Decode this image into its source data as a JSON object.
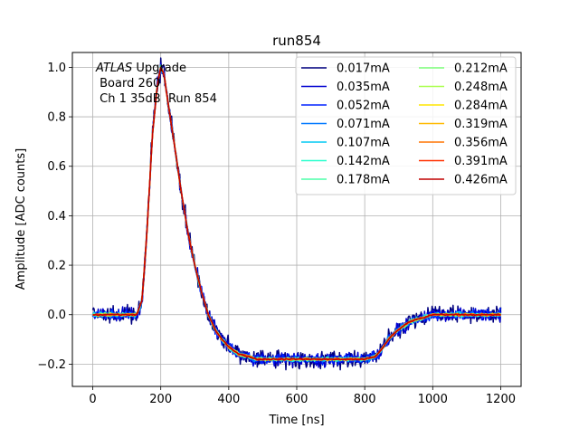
{
  "chart_data": {
    "type": "line",
    "title": "run854",
    "xlabel": "Time [ns]",
    "ylabel": "Amplitude [ADC counts]",
    "xlim": [
      -60,
      1260
    ],
    "ylim": [
      -0.29,
      1.06
    ],
    "xticks": [
      0,
      200,
      400,
      600,
      800,
      1000,
      1200
    ],
    "yticks": [
      -0.2,
      0.0,
      0.2,
      0.4,
      0.6,
      0.8,
      1.0
    ],
    "ytick_labels": [
      "−0.2",
      "0.0",
      "0.2",
      "0.4",
      "0.6",
      "0.8",
      "1.0"
    ],
    "grid": true,
    "legend_position": "top-right",
    "legend_columns": 2,
    "annotation": {
      "italic": "ATLAS",
      "line1_rest": " Upgrade",
      "line2": " Board 260",
      "line3": " Ch 1 35dB  Run 854"
    },
    "pulse_shape": {
      "x": [
        0,
        130,
        145,
        160,
        175,
        190,
        200,
        210,
        220,
        240,
        260,
        280,
        300,
        320,
        340,
        360,
        380,
        400,
        430,
        460,
        480,
        520,
        560,
        600,
        650,
        700,
        750,
        800,
        830,
        850,
        870,
        890,
        910,
        930,
        950,
        980,
        1000,
        1050,
        1100,
        1150,
        1200
      ],
      "y": [
        0.0,
        0.0,
        0.06,
        0.35,
        0.72,
        0.93,
        1.0,
        0.97,
        0.87,
        0.69,
        0.5,
        0.33,
        0.2,
        0.09,
        0.0,
        -0.06,
        -0.1,
        -0.13,
        -0.16,
        -0.17,
        -0.18,
        -0.18,
        -0.18,
        -0.18,
        -0.18,
        -0.18,
        -0.18,
        -0.18,
        -0.17,
        -0.14,
        -0.1,
        -0.07,
        -0.05,
        -0.03,
        -0.02,
        -0.01,
        0.0,
        0.0,
        0.0,
        0.0,
        0.0
      ]
    },
    "series": [
      {
        "name": "0.017mA",
        "color": "#00007f",
        "noise": 0.022
      },
      {
        "name": "0.035mA",
        "color": "#0000d0",
        "noise": 0.017
      },
      {
        "name": "0.052mA",
        "color": "#0022ff",
        "noise": 0.012
      },
      {
        "name": "0.071mA",
        "color": "#0078ff",
        "noise": 0.008
      },
      {
        "name": "0.107mA",
        "color": "#00c8f4",
        "noise": 0.006
      },
      {
        "name": "0.142mA",
        "color": "#29ffce",
        "noise": 0.005
      },
      {
        "name": "0.178mA",
        "color": "#4dffaa",
        "noise": 0.004
      },
      {
        "name": "0.212mA",
        "color": "#7dff7a",
        "noise": 0.004
      },
      {
        "name": "0.248mA",
        "color": "#aaff4d",
        "noise": 0.003
      },
      {
        "name": "0.284mA",
        "color": "#ffe600",
        "noise": 0.003
      },
      {
        "name": "0.319mA",
        "color": "#ffb900",
        "noise": 0.003
      },
      {
        "name": "0.356mA",
        "color": "#ff7300",
        "noise": 0.003
      },
      {
        "name": "0.391mA",
        "color": "#ff3000",
        "noise": 0.002
      },
      {
        "name": "0.426mA",
        "color": "#c00000",
        "noise": 0.002
      }
    ]
  }
}
